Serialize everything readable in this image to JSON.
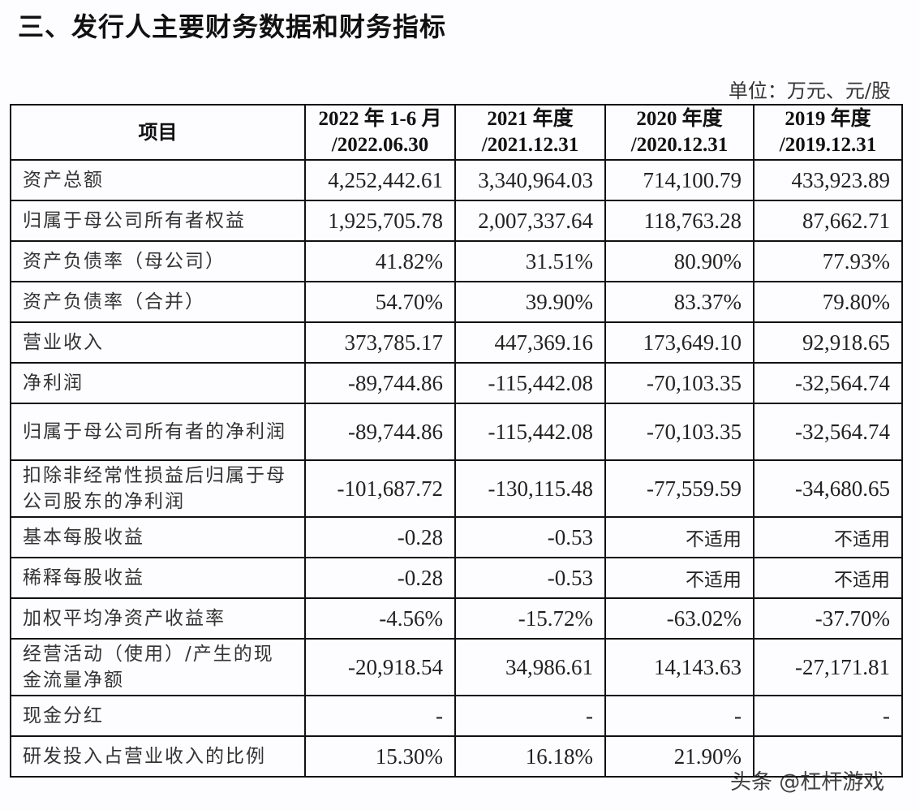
{
  "title": "三、发行人主要财务数据和财务指标",
  "unit": "单位：万元、元/股",
  "table": {
    "headers": [
      {
        "line1": "项目",
        "line2": ""
      },
      {
        "line1": "2022 年 1-6 月",
        "line2": "/2022.06.30"
      },
      {
        "line1": "2021 年度",
        "line2": "/2021.12.31"
      },
      {
        "line1": "2020 年度",
        "line2": "/2020.12.31"
      },
      {
        "line1": "2019 年度",
        "line2": "/2019.12.31"
      }
    ],
    "rows": [
      {
        "label": "资产总额",
        "values": [
          "4,252,442.61",
          "3,340,964.03",
          "714,100.79",
          "433,923.89"
        ]
      },
      {
        "label": "归属于母公司所有者权益",
        "values": [
          "1,925,705.78",
          "2,007,337.64",
          "118,763.28",
          "87,662.71"
        ]
      },
      {
        "label": "资产负债率（母公司）",
        "values": [
          "41.82%",
          "31.51%",
          "80.90%",
          "77.93%"
        ]
      },
      {
        "label": "资产负债率（合并）",
        "values": [
          "54.70%",
          "39.90%",
          "83.37%",
          "79.80%"
        ]
      },
      {
        "label": "营业收入",
        "values": [
          "373,785.17",
          "447,369.16",
          "173,649.10",
          "92,918.65"
        ]
      },
      {
        "label": "净利润",
        "values": [
          "-89,744.86",
          "-115,442.08",
          "-70,103.35",
          "-32,564.74"
        ]
      },
      {
        "label": "归属于母公司所有者的净利润",
        "values": [
          "-89,744.86",
          "-115,442.08",
          "-70,103.35",
          "-32,564.74"
        ]
      },
      {
        "label": "扣除非经常性损益后归属于母公司股东的净利润",
        "values": [
          "-101,687.72",
          "-130,115.48",
          "-77,559.59",
          "-34,680.65"
        ]
      },
      {
        "label": "基本每股收益",
        "values": [
          "-0.28",
          "-0.53",
          "不适用",
          "不适用"
        ]
      },
      {
        "label": "稀释每股收益",
        "values": [
          "-0.28",
          "-0.53",
          "不适用",
          "不适用"
        ]
      },
      {
        "label": "加权平均净资产收益率",
        "values": [
          "-4.56%",
          "-15.72%",
          "-63.02%",
          "-37.70%"
        ]
      },
      {
        "label": "经营活动（使用）/产生的现金流量净额",
        "values": [
          "-20,918.54",
          "34,986.61",
          "14,143.63",
          "-27,171.81"
        ]
      },
      {
        "label": "现金分红",
        "values": [
          "-",
          "-",
          "-",
          "-"
        ]
      },
      {
        "label": "研发投入占营业收入的比例",
        "values": [
          "15.30%",
          "16.18%",
          "21.90%",
          ""
        ]
      }
    ]
  },
  "watermark": "头条 @杠杆游戏"
}
